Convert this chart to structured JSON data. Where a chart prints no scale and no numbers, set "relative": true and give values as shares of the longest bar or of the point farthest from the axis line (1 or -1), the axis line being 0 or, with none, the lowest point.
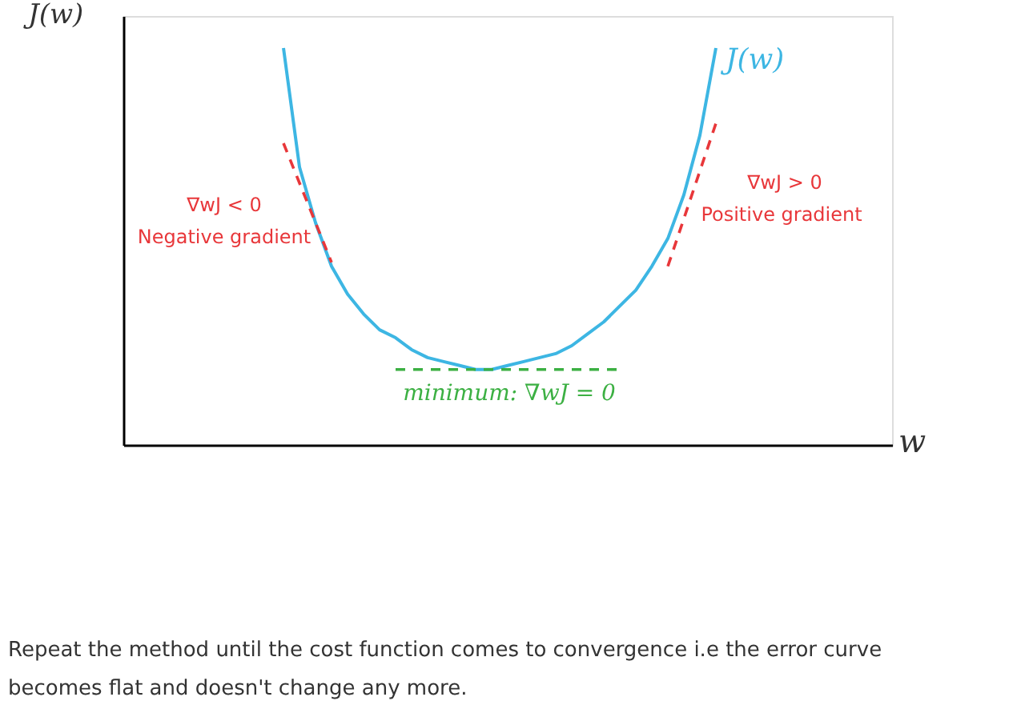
{
  "chart_data": {
    "type": "line",
    "relative": true,
    "xlabel": "w",
    "ylabel": "J(w)",
    "categories": [
      null,
      null,
      null,
      null,
      null,
      null,
      null,
      null,
      null,
      null,
      null,
      null,
      null,
      null,
      null,
      null,
      null,
      null,
      null,
      null,
      null,
      null,
      null,
      null,
      null,
      null,
      null,
      null,
      null,
      null,
      null,
      null,
      null,
      null,
      null,
      null,
      null,
      null,
      null,
      null,
      null,
      null,
      null,
      null,
      null,
      null,
      null,
      null,
      null
    ],
    "series": [
      {
        "name": "J(w)",
        "color": "#3db6e3",
        "line_style": "solid",
        "values": [
          null,
          null,
          null,
          null,
          null,
          null,
          null,
          null,
          null,
          null,
          1.0,
          0.7,
          0.56,
          0.45,
          0.38,
          0.33,
          0.29,
          0.27,
          0.24,
          0.22,
          0.21,
          0.2,
          0.19,
          0.19,
          0.2,
          0.21,
          0.22,
          0.23,
          0.25,
          0.28,
          0.31,
          0.35,
          0.39,
          0.45,
          0.52,
          0.63,
          0.78,
          1.0,
          null,
          null,
          null,
          null,
          null,
          null,
          null,
          null,
          null,
          null,
          null
        ]
      },
      {
        "color": "#e8373a",
        "line_style": "dashed",
        "values": [
          null,
          null,
          null,
          null,
          null,
          null,
          null,
          null,
          null,
          null,
          0.76,
          null,
          null,
          0.46,
          null,
          null,
          null,
          null,
          null,
          null,
          null,
          null,
          null,
          null,
          null,
          null,
          null,
          null,
          null,
          null,
          null,
          null,
          null,
          null,
          null,
          null,
          null,
          null,
          null,
          null,
          null,
          null,
          null,
          null,
          null,
          null,
          null,
          null,
          null
        ]
      },
      {
        "color": "#e8373a",
        "line_style": "dashed",
        "values": [
          null,
          null,
          null,
          null,
          null,
          null,
          null,
          null,
          null,
          null,
          null,
          null,
          null,
          null,
          null,
          null,
          null,
          null,
          null,
          null,
          null,
          null,
          null,
          null,
          null,
          null,
          null,
          null,
          null,
          null,
          null,
          null,
          null,
          null,
          0.45,
          null,
          null,
          0.81,
          null,
          null,
          null,
          null,
          null,
          null,
          null,
          null,
          null,
          null,
          null
        ]
      },
      {
        "color": "#3cb043",
        "line_style": "dashed",
        "values": [
          null,
          null,
          null,
          null,
          null,
          null,
          null,
          null,
          null,
          null,
          null,
          null,
          null,
          null,
          null,
          null,
          null,
          0.19,
          null,
          null,
          null,
          null,
          null,
          null,
          null,
          null,
          null,
          null,
          null,
          null,
          null,
          0.19,
          null,
          null,
          null,
          null,
          null,
          null,
          null,
          null,
          null,
          null,
          null,
          null,
          null,
          null,
          null,
          null,
          null
        ]
      }
    ],
    "legend": false,
    "grid": false,
    "annotations": [
      "∇wJ < 0",
      "Negative gradient",
      "∇wJ > 0",
      "Positive gradient",
      "minimum: ∇wJ = 0",
      "Repeat the method until the cost function comes to convergence i.e the error curve becomes flat and doesn't change any more."
    ]
  }
}
